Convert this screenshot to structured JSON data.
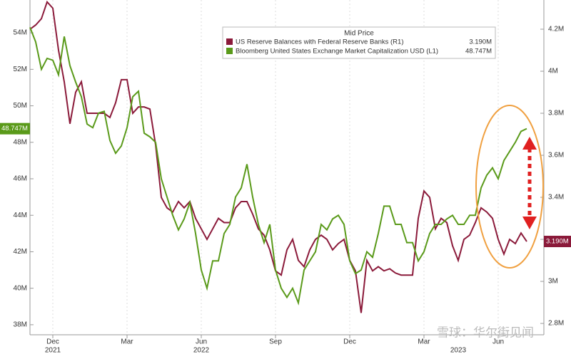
{
  "chart_data": {
    "type": "line",
    "legend_title": "Mid Price",
    "watermark": "雪球：华尔街见闻",
    "categories": [
      null,
      null,
      null,
      null,
      "Dec",
      null,
      null,
      null,
      null,
      null,
      null,
      null,
      null,
      null,
      null,
      null,
      null,
      "Mar",
      null,
      null,
      null,
      null,
      null,
      null,
      null,
      null,
      null,
      null,
      null,
      null,
      "Jun",
      null,
      null,
      null,
      null,
      null,
      null,
      null,
      null,
      null,
      null,
      null,
      null,
      "Sep",
      null,
      null,
      null,
      null,
      null,
      null,
      null,
      null,
      null,
      null,
      null,
      null,
      "Dec",
      null,
      null,
      null,
      null,
      null,
      null,
      null,
      null,
      null,
      null,
      null,
      null,
      "Mar",
      null,
      null,
      null,
      null,
      null,
      null,
      null,
      null,
      null,
      null,
      null,
      null,
      "Jun",
      null,
      null,
      null,
      null,
      null
    ],
    "year_labels": [
      null,
      null,
      null,
      null,
      "2021",
      null,
      null,
      null,
      null,
      null,
      null,
      null,
      null,
      null,
      null,
      null,
      null,
      null,
      null,
      null,
      null,
      null,
      null,
      null,
      null,
      null,
      null,
      null,
      null,
      null,
      "2022",
      null,
      null,
      null,
      null,
      null,
      null,
      null,
      null,
      null,
      null,
      null,
      null,
      null,
      null,
      null,
      null,
      null,
      null,
      null,
      null,
      null,
      null,
      null,
      null,
      null,
      null,
      null,
      null,
      null,
      null,
      null,
      null,
      null,
      null,
      null,
      null,
      null,
      null,
      null,
      null,
      null,
      null,
      null,
      null,
      "2023",
      null,
      null,
      null,
      null,
      null,
      null,
      null,
      null,
      null,
      null,
      null,
      null
    ],
    "series": [
      {
        "name": "US Reserve Balances with Federal Reserve Banks  (R1)",
        "last_value_label": "3.190M",
        "color": "#8b1a3a",
        "axis": "y2",
        "values": [
          4.2,
          4.22,
          4.25,
          4.33,
          4.3,
          4.1,
          3.95,
          3.75,
          3.9,
          3.95,
          3.8,
          3.8,
          3.8,
          3.8,
          3.78,
          3.85,
          3.96,
          3.96,
          3.8,
          3.83,
          3.83,
          3.82,
          3.65,
          3.4,
          3.35,
          3.33,
          3.38,
          3.35,
          3.38,
          3.3,
          3.25,
          3.2,
          3.25,
          3.3,
          3.28,
          3.28,
          3.35,
          3.38,
          3.38,
          3.32,
          3.25,
          3.22,
          3.15,
          3.05,
          3.03,
          3.15,
          3.2,
          3.1,
          3.07,
          3.15,
          3.2,
          3.22,
          3.2,
          3.15,
          3.18,
          3.2,
          3.1,
          3.05,
          2.85,
          3.1,
          3.05,
          3.07,
          3.05,
          3.06,
          3.04,
          3.03,
          3.03,
          3.03,
          3.3,
          3.43,
          3.4,
          3.25,
          3.3,
          3.28,
          3.17,
          3.1,
          3.2,
          3.22,
          3.28,
          3.35,
          3.33,
          3.3,
          3.2,
          3.13,
          3.2,
          3.18,
          3.23,
          3.19
        ]
      },
      {
        "name": "Bloomberg United States Exchange Market Capitalization USD  (L1)",
        "last_value_label": "48.747M",
        "color": "#5a9a1a",
        "axis": "y",
        "values": [
          54.3,
          53.5,
          52,
          52.6,
          52.5,
          51.7,
          53.8,
          52.2,
          51.3,
          50.5,
          49,
          48.8,
          49.6,
          49.7,
          48.1,
          47.4,
          47.8,
          48.8,
          50.5,
          50.8,
          48.5,
          48.3,
          48,
          46,
          45,
          44,
          43.2,
          43.8,
          44.7,
          43,
          41,
          40,
          41.5,
          41.5,
          43,
          43.5,
          45,
          45.5,
          46.8,
          45,
          43.5,
          42.5,
          43.5,
          41,
          40,
          39.5,
          40,
          39.2,
          41,
          41.5,
          42,
          43.5,
          43.2,
          43.8,
          44,
          43.5,
          41.5,
          40.8,
          41,
          42,
          41.7,
          43,
          44.5,
          44.5,
          43.5,
          43.5,
          42.5,
          42.5,
          41.5,
          42,
          43,
          43.5,
          43.5,
          43.8,
          44,
          43.5,
          43.5,
          44,
          44,
          45.5,
          46.2,
          46.6,
          46,
          47,
          47.5,
          48,
          48.6,
          48.747
        ]
      }
    ],
    "ylim": [
      37.45,
      55.8
    ],
    "yticks": [
      {
        "value": 38,
        "label": "38M"
      },
      {
        "value": 40,
        "label": "40M"
      },
      {
        "value": 42,
        "label": "42M"
      },
      {
        "value": 44,
        "label": "44M"
      },
      {
        "value": 46,
        "label": "46M"
      },
      {
        "value": 48,
        "label": "48M"
      },
      {
        "value": 50,
        "label": "50M"
      },
      {
        "value": 52,
        "label": "52M"
      },
      {
        "value": 54,
        "label": "54M"
      }
    ],
    "y2lim": [
      2.746,
      4.339
    ],
    "y2ticks": [
      {
        "value": 2.8,
        "label": "2.8M"
      },
      {
        "value": 3,
        "label": "3M"
      },
      {
        "value": 3.2,
        "label": "3.2M"
      },
      {
        "value": 3.4,
        "label": "3.4M"
      },
      {
        "value": 3.6,
        "label": "3.6M"
      },
      {
        "value": 3.8,
        "label": "3.8M"
      },
      {
        "value": 4,
        "label": "4M"
      },
      {
        "value": 4.2,
        "label": "4.2M"
      }
    ],
    "grid": true
  }
}
